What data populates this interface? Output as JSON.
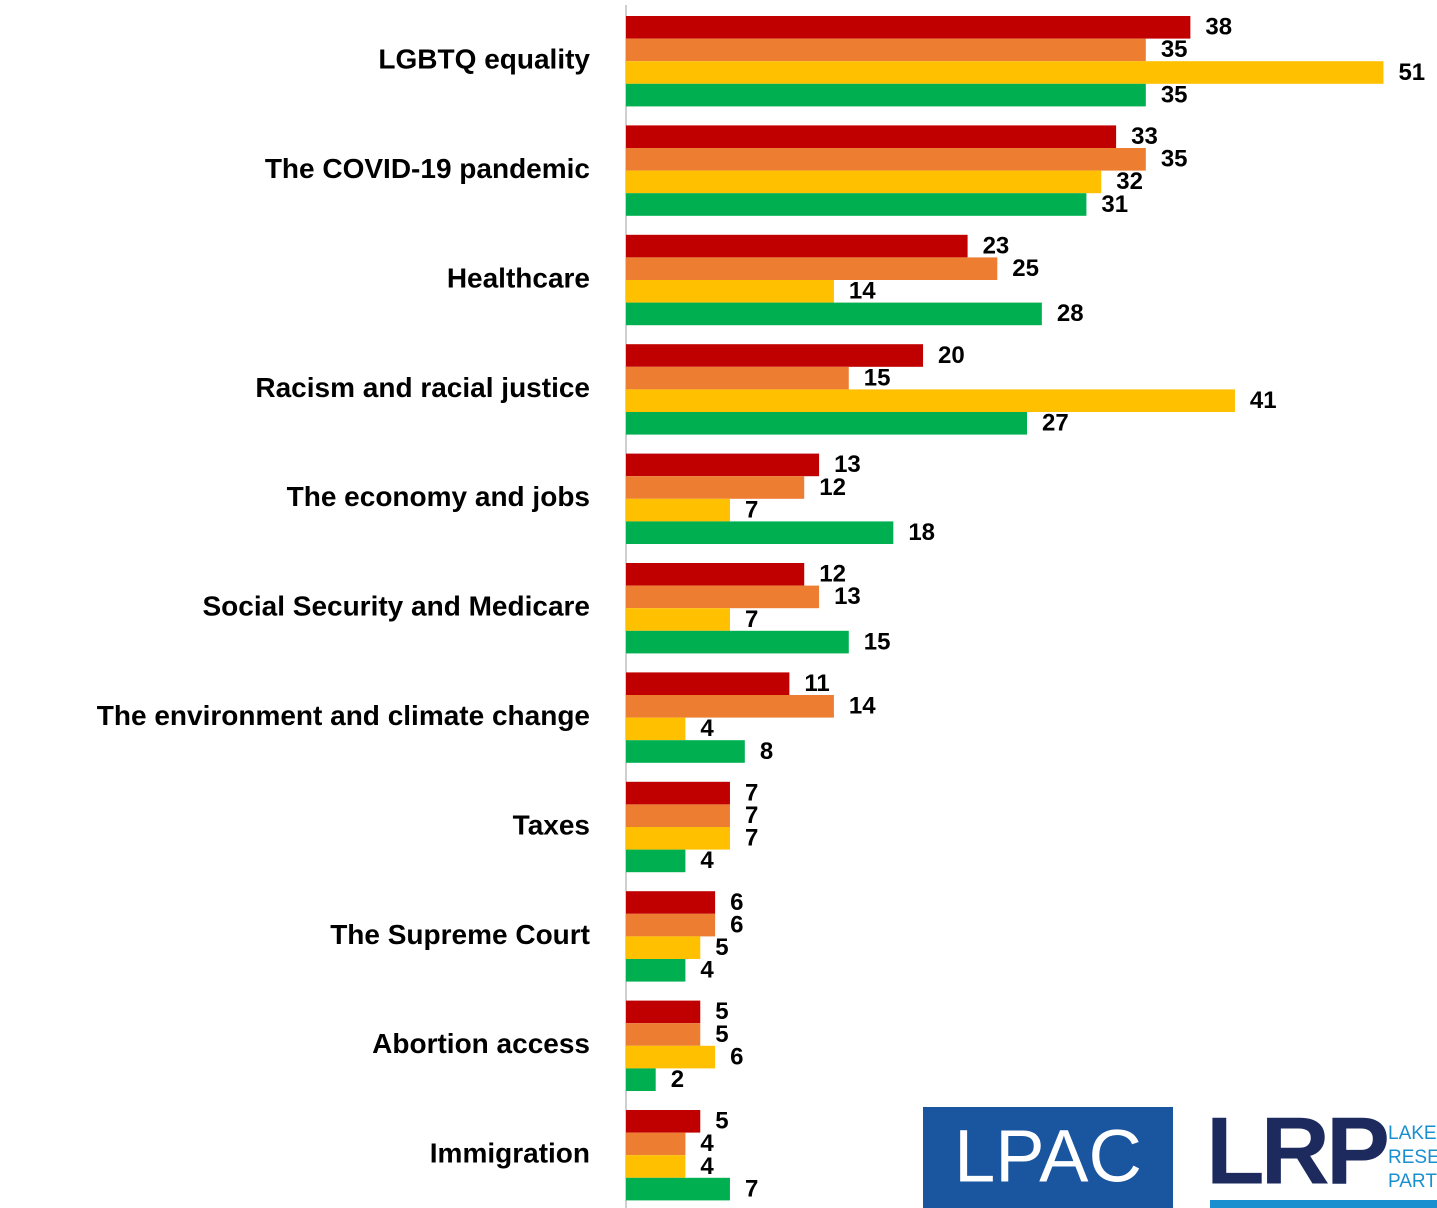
{
  "chart_data": {
    "type": "bar",
    "orientation": "horizontal",
    "categories": [
      "LGBTQ equality",
      "The COVID-19 pandemic",
      "Healthcare",
      "Racism and racial justice",
      "The economy and jobs",
      "Social Security and Medicare",
      "The environment and climate change",
      "Taxes",
      "The Supreme Court",
      "Abortion access",
      "Immigration"
    ],
    "series": [
      {
        "color": "#c00000",
        "values": [
          38,
          33,
          23,
          20,
          13,
          12,
          11,
          7,
          6,
          5,
          5
        ]
      },
      {
        "color": "#ed7d31",
        "values": [
          35,
          35,
          25,
          15,
          12,
          13,
          14,
          7,
          6,
          5,
          4
        ]
      },
      {
        "color": "#ffc000",
        "values": [
          51,
          32,
          14,
          41,
          7,
          7,
          4,
          7,
          5,
          6,
          4
        ]
      },
      {
        "color": "#00b050",
        "values": [
          35,
          31,
          28,
          27,
          18,
          15,
          8,
          4,
          4,
          2,
          7
        ]
      }
    ],
    "xlim": [
      0,
      54
    ],
    "logos": [
      "LPAC",
      "LRP",
      "LAKE",
      "RESE",
      "PART"
    ]
  }
}
